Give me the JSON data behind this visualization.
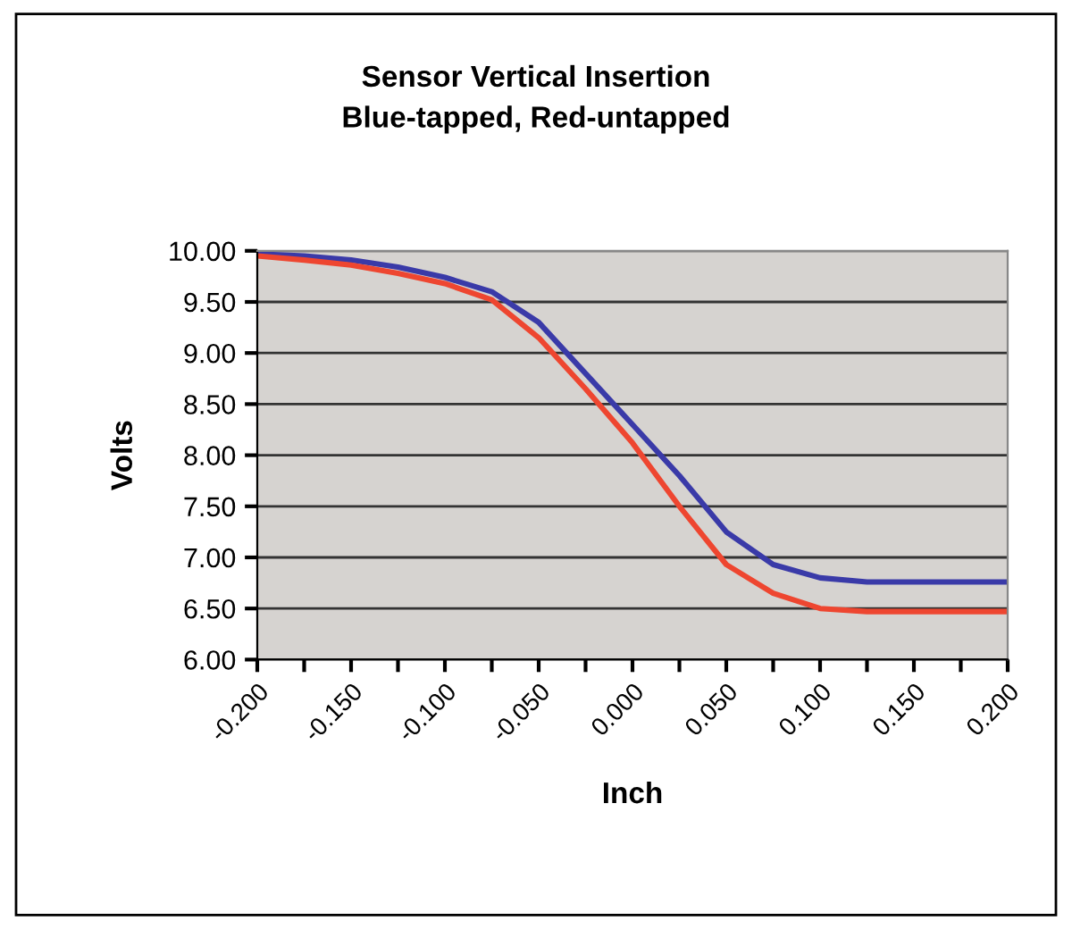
{
  "chart_data": {
    "type": "line",
    "title": "Sensor Vertical Insertion\nBlue-tapped, Red-untapped",
    "xlabel": "Inch",
    "ylabel": "Volts",
    "x": [
      -0.2,
      -0.175,
      -0.15,
      -0.125,
      -0.1,
      -0.075,
      -0.05,
      -0.025,
      0,
      0.025,
      0.05,
      0.075,
      0.1,
      0.125,
      0.15,
      0.175,
      0.2
    ],
    "series": [
      {
        "color": "#3a3aa8",
        "values": [
          9.97,
          9.95,
          9.91,
          9.84,
          9.74,
          9.6,
          9.3,
          8.8,
          8.3,
          7.8,
          7.25,
          6.93,
          6.8,
          6.76,
          6.76,
          6.76,
          6.76
        ]
      },
      {
        "color": "#ee4630",
        "values": [
          9.95,
          9.91,
          9.86,
          9.78,
          9.68,
          9.52,
          9.15,
          8.65,
          8.12,
          7.5,
          6.93,
          6.65,
          6.5,
          6.47,
          6.47,
          6.47,
          6.47
        ]
      }
    ],
    "xlim": [
      -0.2,
      0.2
    ],
    "xticks": [
      {
        "value": -0.2,
        "label": "-0.200"
      },
      {
        "value": -0.175,
        "label": null
      },
      {
        "value": -0.15,
        "label": "-0.150"
      },
      {
        "value": -0.125,
        "label": null
      },
      {
        "value": -0.1,
        "label": "-0.100"
      },
      {
        "value": -0.075,
        "label": null
      },
      {
        "value": -0.05,
        "label": "-0.050"
      },
      {
        "value": -0.025,
        "label": null
      },
      {
        "value": 0,
        "label": "0.000"
      },
      {
        "value": 0.025,
        "label": null
      },
      {
        "value": 0.05,
        "label": "0.050"
      },
      {
        "value": 0.075,
        "label": null
      },
      {
        "value": 0.1,
        "label": "0.100"
      },
      {
        "value": 0.125,
        "label": null
      },
      {
        "value": 0.15,
        "label": "0.150"
      },
      {
        "value": 0.175,
        "label": null
      },
      {
        "value": 0.2,
        "label": "0.200"
      }
    ],
    "ylim": [
      6,
      10
    ],
    "yticks": [
      {
        "value": 6,
        "label": "6.00"
      },
      {
        "value": 6.5,
        "label": "6.50"
      },
      {
        "value": 7,
        "label": "7.00"
      },
      {
        "value": 7.5,
        "label": "7.50"
      },
      {
        "value": 8,
        "label": "8.00"
      },
      {
        "value": 8.5,
        "label": "8.50"
      },
      {
        "value": 9,
        "label": "9.00"
      },
      {
        "value": 9.5,
        "label": "9.50"
      },
      {
        "value": 10,
        "label": "10.00"
      }
    ],
    "grid": "y",
    "marker": "none",
    "line_style": "solid"
  }
}
